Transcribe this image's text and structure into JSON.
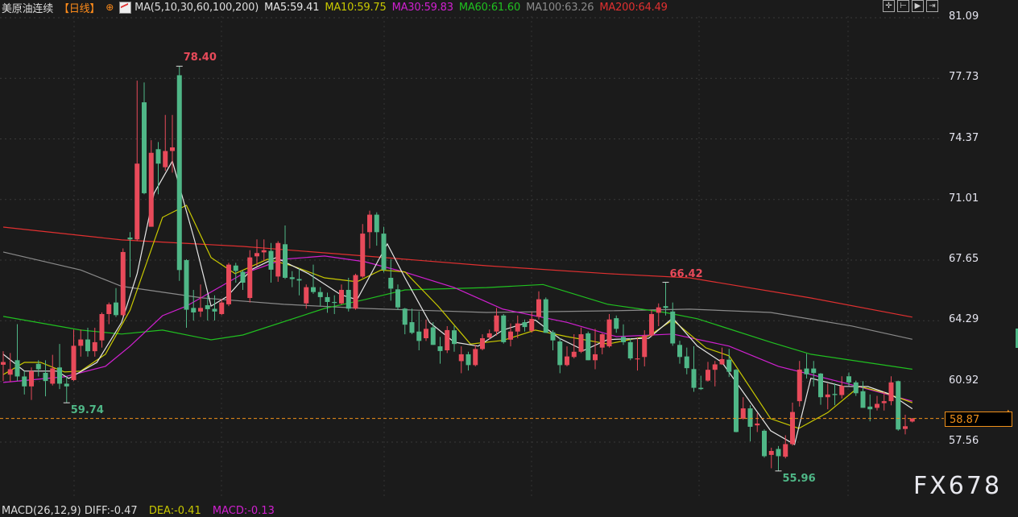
{
  "header": {
    "symbol": "美原油连续",
    "period": "【日线】",
    "crosshair_icon": "crosshair-icon",
    "ma_params": "MA(5,10,30,60,100,200)",
    "ma5": "MA5:59.41",
    "ma10": "MA10:59.75",
    "ma30": "MA30:59.83",
    "ma60": "MA60:61.60",
    "ma100": "MA100:63.26",
    "ma200": "MA200:64.49"
  },
  "toolbar": {
    "icons": [
      "crosshair-icon",
      "zoom-range-icon",
      "play-icon",
      "exit-icon"
    ]
  },
  "colors": {
    "up": "#e84a5a",
    "down": "#4fb787",
    "ma5": "#e6e6e6",
    "ma10": "#c8c800",
    "ma30": "#d020d0",
    "ma60": "#20c020",
    "ma100": "#8a8a8a",
    "ma200": "#e03030",
    "last_price": "#f0901a"
  },
  "last_price": "58.87",
  "watermark": "FX678",
  "macd": {
    "params": "MACD(26,12,9) DIFF:-0.47",
    "dea": "DEA:-0.41",
    "macd": "MACD:-0.13"
  },
  "chart_data": {
    "type": "candlestick",
    "ylim": [
      57.56,
      81.09
    ],
    "y_ticks": [
      "81.09",
      "77.73",
      "74.37",
      "71.01",
      "67.65",
      "64.29",
      "60.92",
      "57.56"
    ],
    "grid": true,
    "annotations": [
      {
        "label": "78.40",
        "candle": 26,
        "value": 78.4,
        "kind": "high"
      },
      {
        "label": "59.74",
        "candle": 10,
        "value": 59.74,
        "kind": "low"
      },
      {
        "label": "66.42",
        "candle": 95,
        "value": 66.42,
        "kind": "high"
      },
      {
        "label": "55.96",
        "candle": 111,
        "value": 55.96,
        "kind": "low"
      }
    ],
    "ohlc": [
      [
        61.85,
        62.6,
        60.95,
        62.0
      ],
      [
        61.3,
        62.5,
        60.9,
        61.6
      ],
      [
        62.1,
        64.1,
        60.95,
        61.2
      ],
      [
        61.2,
        61.5,
        60.2,
        60.65
      ],
      [
        60.65,
        61.7,
        59.9,
        61.5
      ],
      [
        61.9,
        62.1,
        61.2,
        61.6
      ],
      [
        61.4,
        62.1,
        60.1,
        60.95
      ],
      [
        60.8,
        62.4,
        60.7,
        61.65
      ],
      [
        61.7,
        63.0,
        60.5,
        60.8
      ],
      [
        60.8,
        61.2,
        59.74,
        60.65
      ],
      [
        61.0,
        63.8,
        60.95,
        62.9
      ],
      [
        62.9,
        63.8,
        62.3,
        63.25
      ],
      [
        63.25,
        63.9,
        62.3,
        62.6
      ],
      [
        62.6,
        63.9,
        62.3,
        63.1
      ],
      [
        63.2,
        64.75,
        62.8,
        64.66
      ],
      [
        64.66,
        65.3,
        64.1,
        65.2
      ],
      [
        65.3,
        66.1,
        64.5,
        64.6
      ],
      [
        64.6,
        68.3,
        64.5,
        68.1
      ],
      [
        68.9,
        69.2,
        66.7,
        68.8
      ],
      [
        68.8,
        77.6,
        68.7,
        73.0
      ],
      [
        76.4,
        77.5,
        71.3,
        71.36
      ],
      [
        69.5,
        74.3,
        69.5,
        73.6
      ],
      [
        73.8,
        74.2,
        71.3,
        73.0
      ],
      [
        72.8,
        75.7,
        72.6,
        73.7
      ],
      [
        73.7,
        75.7,
        72.5,
        73.9
      ],
      [
        77.9,
        78.4,
        66.5,
        67.1
      ],
      [
        67.65,
        67.7,
        63.9,
        64.9
      ],
      [
        65.0,
        66.0,
        64.3,
        64.75
      ],
      [
        64.8,
        66.3,
        64.5,
        65.0
      ],
      [
        65.15,
        65.7,
        64.3,
        64.93
      ],
      [
        64.95,
        65.7,
        64.3,
        64.8
      ],
      [
        64.66,
        65.5,
        64.6,
        65.3
      ],
      [
        65.2,
        67.5,
        65.1,
        67.4
      ],
      [
        67.35,
        67.5,
        66.4,
        67.05
      ],
      [
        67.0,
        67.1,
        66.0,
        66.4
      ],
      [
        65.55,
        68.2,
        65.3,
        67.8
      ],
      [
        67.86,
        68.8,
        67.3,
        68.04
      ],
      [
        68.08,
        68.8,
        67.6,
        68.2
      ],
      [
        68.16,
        68.6,
        66.4,
        67.12
      ],
      [
        66.74,
        68.7,
        66.45,
        68.6
      ],
      [
        68.53,
        69.57,
        66.6,
        66.67
      ],
      [
        66.7,
        67.04,
        66.15,
        66.6
      ],
      [
        66.6,
        67.19,
        65.7,
        66.52
      ],
      [
        65.25,
        66.3,
        64.96,
        66.15
      ],
      [
        66.15,
        67.4,
        65.78,
        65.88
      ],
      [
        65.88,
        66.15,
        65.1,
        65.6
      ],
      [
        65.6,
        65.85,
        64.73,
        65.33
      ],
      [
        65.33,
        65.7,
        64.66,
        65.29
      ],
      [
        65.25,
        66.3,
        65.18,
        66.0
      ],
      [
        66.0,
        66.67,
        64.8,
        64.96
      ],
      [
        64.96,
        66.9,
        64.9,
        66.82
      ],
      [
        66.74,
        69.65,
        66.67,
        69.12
      ],
      [
        69.2,
        70.39,
        68.3,
        70.17
      ],
      [
        70.17,
        70.3,
        68.45,
        69.2
      ],
      [
        69.12,
        69.5,
        66.97,
        67.12
      ],
      [
        66.67,
        67.7,
        65.4,
        66.07
      ],
      [
        66.03,
        66.3,
        64.88,
        65.03
      ],
      [
        64.96,
        65.0,
        63.54,
        64.07
      ],
      [
        64.21,
        64.96,
        63.55,
        63.62
      ],
      [
        63.69,
        64.81,
        62.65,
        63.17
      ],
      [
        63.32,
        64.36,
        63.17,
        63.84
      ],
      [
        63.92,
        64.21,
        62.95,
        62.95
      ],
      [
        62.87,
        63.39,
        61.91,
        62.61
      ],
      [
        62.65,
        63.99,
        62.5,
        63.77
      ],
      [
        63.76,
        64.0,
        62.57,
        63.0
      ],
      [
        62.05,
        62.87,
        61.38,
        62.43
      ],
      [
        62.43,
        62.57,
        61.53,
        61.83
      ],
      [
        61.83,
        62.95,
        61.76,
        62.72
      ],
      [
        62.72,
        63.54,
        62.65,
        63.32
      ],
      [
        63.36,
        63.8,
        63.24,
        63.59
      ],
      [
        63.69,
        65.0,
        63.47,
        64.58
      ],
      [
        64.58,
        64.66,
        63.02,
        63.1
      ],
      [
        63.24,
        64.14,
        62.87,
        63.69
      ],
      [
        63.69,
        64.58,
        63.32,
        64.14
      ],
      [
        64.21,
        64.36,
        63.69,
        63.94
      ],
      [
        63.73,
        64.78,
        63.62,
        64.39
      ],
      [
        64.51,
        65.92,
        64.36,
        65.48
      ],
      [
        65.48,
        65.58,
        63.62,
        63.62
      ],
      [
        63.65,
        63.76,
        62.65,
        63.2
      ],
      [
        63.14,
        63.32,
        61.38,
        61.83
      ],
      [
        61.83,
        62.87,
        61.76,
        62.31
      ],
      [
        62.28,
        63.54,
        62.2,
        62.57
      ],
      [
        62.57,
        63.91,
        62.5,
        63.54
      ],
      [
        63.59,
        63.69,
        62.1,
        62.1
      ],
      [
        62.1,
        63.84,
        61.6,
        62.43
      ],
      [
        62.8,
        63.59,
        62.43,
        63.54
      ],
      [
        62.87,
        64.66,
        62.8,
        64.36
      ],
      [
        64.43,
        64.58,
        63.62,
        63.84
      ],
      [
        63.39,
        64.09,
        62.95,
        63.1
      ],
      [
        63.1,
        63.32,
        62.1,
        62.2
      ],
      [
        62.16,
        63.32,
        61.53,
        62.2
      ],
      [
        62.28,
        63.76,
        61.76,
        63.47
      ],
      [
        63.47,
        64.88,
        63.39,
        64.66
      ],
      [
        64.73,
        65.25,
        63.99,
        65.03
      ],
      [
        65.1,
        66.42,
        64.58,
        65.0
      ],
      [
        64.8,
        65.3,
        62.9,
        63.03
      ],
      [
        62.95,
        63.18,
        61.91,
        62.28
      ],
      [
        62.31,
        62.8,
        61.32,
        61.66
      ],
      [
        61.61,
        62.88,
        60.35,
        60.57
      ],
      [
        60.57,
        61.24,
        60.45,
        60.5
      ],
      [
        60.97,
        62.01,
        60.91,
        61.57
      ],
      [
        61.57,
        62.06,
        60.65,
        61.87
      ],
      [
        61.87,
        62.8,
        61.84,
        62.16
      ],
      [
        62.13,
        62.73,
        61.17,
        61.46
      ],
      [
        61.57,
        61.61,
        58.1,
        58.12
      ],
      [
        58.86,
        60.05,
        58.8,
        59.43
      ],
      [
        59.43,
        59.6,
        57.6,
        58.41
      ],
      [
        58.49,
        59.16,
        58.12,
        58.59
      ],
      [
        58.19,
        58.27,
        56.7,
        56.78
      ],
      [
        56.85,
        57.25,
        56.11,
        57.07
      ],
      [
        57.18,
        57.34,
        55.96,
        56.78
      ],
      [
        56.75,
        57.94,
        56.66,
        57.45
      ],
      [
        57.45,
        59.75,
        57.37,
        59.23
      ],
      [
        59.83,
        62.06,
        59.53,
        61.58
      ],
      [
        61.64,
        62.46,
        61.09,
        61.32
      ],
      [
        61.64,
        62.06,
        60.65,
        61.39
      ],
      [
        61.36,
        61.39,
        59.63,
        60.05
      ],
      [
        60.05,
        60.8,
        59.38,
        60.2
      ],
      [
        60.23,
        60.82,
        59.6,
        60.17
      ],
      [
        60.17,
        61.21,
        59.98,
        60.68
      ],
      [
        61.21,
        61.42,
        60.68,
        60.87
      ],
      [
        60.87,
        60.97,
        60.12,
        60.27
      ],
      [
        60.38,
        60.94,
        59.46,
        59.46
      ],
      [
        59.53,
        60.2,
        58.71,
        59.38
      ],
      [
        59.46,
        60.12,
        59.31,
        59.68
      ],
      [
        59.72,
        60.38,
        59.31,
        59.83
      ],
      [
        59.83,
        61.21,
        59.6,
        60.87
      ],
      [
        60.94,
        60.97,
        58.19,
        58.26
      ],
      [
        58.29,
        59.08,
        57.99,
        58.44
      ],
      [
        58.7,
        58.9,
        58.65,
        58.87
      ]
    ],
    "ma_series": [
      {
        "name": "MA200",
        "color": "#e03030",
        "points": [
          [
            1,
            69.48
          ],
          [
            17.8,
            68.77
          ],
          [
            35,
            68.41
          ],
          [
            52.3,
            67.88
          ],
          [
            69.6,
            67.34
          ],
          [
            86.8,
            66.9
          ],
          [
            98.4,
            66.67
          ],
          [
            115.6,
            65.55
          ],
          [
            130,
            64.49
          ]
        ]
      },
      {
        "name": "MA100",
        "color": "#8a8a8a",
        "points": [
          [
            1,
            68.1
          ],
          [
            12,
            67.1
          ],
          [
            17.8,
            66.2
          ],
          [
            29.3,
            65.55
          ],
          [
            40.8,
            65.2
          ],
          [
            52.3,
            64.97
          ],
          [
            69.6,
            64.75
          ],
          [
            86.8,
            64.84
          ],
          [
            98.4,
            64.93
          ],
          [
            109.9,
            64.75
          ],
          [
            121.4,
            64.0
          ],
          [
            130,
            63.26
          ]
        ]
      },
      {
        "name": "MA60",
        "color": "#20c020",
        "points": [
          [
            1,
            64.53
          ],
          [
            12,
            63.77
          ],
          [
            17.8,
            63.55
          ],
          [
            23.6,
            63.77
          ],
          [
            30.5,
            63.23
          ],
          [
            35,
            63.5
          ],
          [
            46.6,
            64.97
          ],
          [
            52.3,
            65.46
          ],
          [
            58,
            66.0
          ],
          [
            69.6,
            66.13
          ],
          [
            77.6,
            66.3
          ],
          [
            86.8,
            65.2
          ],
          [
            94.9,
            64.75
          ],
          [
            99.5,
            64.4
          ],
          [
            109.9,
            63.1
          ],
          [
            115.6,
            62.43
          ],
          [
            130,
            61.6
          ]
        ]
      },
      {
        "name": "MA30",
        "color": "#d020d0",
        "points": [
          [
            1,
            60.87
          ],
          [
            9.7,
            61.18
          ],
          [
            15.5,
            61.76
          ],
          [
            19,
            62.88
          ],
          [
            23.6,
            64.57
          ],
          [
            27,
            65.1
          ],
          [
            35,
            66.89
          ],
          [
            40.8,
            67.7
          ],
          [
            46.6,
            67.88
          ],
          [
            52.3,
            67.56
          ],
          [
            58,
            66.98
          ],
          [
            65,
            66.13
          ],
          [
            71.9,
            64.93
          ],
          [
            81,
            64.2
          ],
          [
            88,
            63.41
          ],
          [
            96,
            63.55
          ],
          [
            104,
            62.88
          ],
          [
            111,
            61.76
          ],
          [
            115.6,
            61.31
          ],
          [
            121.4,
            60.74
          ],
          [
            130,
            59.83
          ]
        ]
      },
      {
        "name": "MA10",
        "color": "#c8c800",
        "points": [
          [
            1,
            61.3
          ],
          [
            4,
            61.98
          ],
          [
            6.3,
            61.98
          ],
          [
            9.7,
            61.45
          ],
          [
            12,
            61.5
          ],
          [
            15.5,
            62.43
          ],
          [
            19,
            64.88
          ],
          [
            23.6,
            70.02
          ],
          [
            27,
            70.69
          ],
          [
            30.5,
            67.79
          ],
          [
            33.9,
            66.9
          ],
          [
            38.5,
            67.7
          ],
          [
            42,
            67.34
          ],
          [
            46.6,
            66.67
          ],
          [
            51.2,
            66.45
          ],
          [
            54.6,
            67.1
          ],
          [
            58,
            67.0
          ],
          [
            62.7,
            65.1
          ],
          [
            67.3,
            63.0
          ],
          [
            71.9,
            63.2
          ],
          [
            76.5,
            63.77
          ],
          [
            81,
            63.41
          ],
          [
            86.8,
            63.0
          ],
          [
            92.6,
            63.45
          ],
          [
            96,
            64.33
          ],
          [
            100.7,
            62.79
          ],
          [
            104,
            62.34
          ],
          [
            109.9,
            58.86
          ],
          [
            113.9,
            58.32
          ],
          [
            118,
            59.2
          ],
          [
            122.5,
            60.65
          ],
          [
            126,
            60.3
          ],
          [
            130,
            59.75
          ]
        ]
      },
      {
        "name": "MA5",
        "color": "#e6e6e6",
        "points": [
          [
            1,
            62.43
          ],
          [
            4,
            61.5
          ],
          [
            8.6,
            61.5
          ],
          [
            10.3,
            61.09
          ],
          [
            14.3,
            61.98
          ],
          [
            17.8,
            64.2
          ],
          [
            20,
            66.9
          ],
          [
            22.4,
            71.36
          ],
          [
            25,
            73.14
          ],
          [
            28.2,
            68.68
          ],
          [
            30.5,
            65.1
          ],
          [
            32.8,
            65.64
          ],
          [
            36.2,
            67.12
          ],
          [
            39.7,
            67.79
          ],
          [
            44.3,
            66.9
          ],
          [
            48.9,
            65.73
          ],
          [
            51.2,
            65.46
          ],
          [
            55.5,
            68.55
          ],
          [
            58,
            66.67
          ],
          [
            61.5,
            64.2
          ],
          [
            65,
            63.1
          ],
          [
            68.4,
            62.88
          ],
          [
            71.9,
            63.77
          ],
          [
            76.5,
            64.33
          ],
          [
            79.9,
            63.32
          ],
          [
            83.4,
            62.65
          ],
          [
            86.8,
            63.25
          ],
          [
            92.6,
            63.32
          ],
          [
            96,
            64.44
          ],
          [
            99.5,
            62.88
          ],
          [
            103,
            61.98
          ],
          [
            109.9,
            58.19
          ],
          [
            113.3,
            57.43
          ],
          [
            115.6,
            61.1
          ],
          [
            120.2,
            60.65
          ],
          [
            123.7,
            60.64
          ],
          [
            127,
            60.2
          ],
          [
            130,
            59.41
          ]
        ]
      }
    ]
  }
}
